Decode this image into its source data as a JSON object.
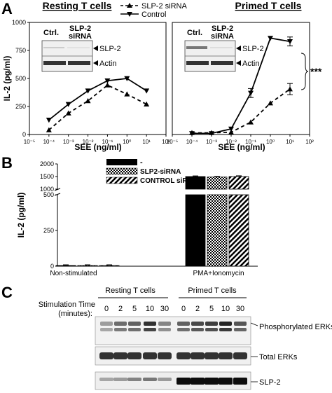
{
  "panel_letters": {
    "a": "A",
    "b": "B",
    "c": "C"
  },
  "panelA": {
    "legend": {
      "siRNA": "SLP-2 siRNA",
      "control": "Control"
    },
    "blot_labels": {
      "ctrl": "Ctrl.",
      "slp2": "SLP-2",
      "sirna": "siRNA",
      "slp2_band": "SLP-2",
      "actin_band": "Actin"
    },
    "significance": "***"
  },
  "panelB": {
    "legend": [
      "-",
      "SLP2-siRNA",
      "CONTROL siRNA"
    ]
  },
  "panelC": {
    "stim_label_1": "Stimulation Time",
    "stim_label_2": "(minutes):",
    "group_resting": "Resting T cells",
    "group_primed": "Primed T cells",
    "times": [
      "0",
      "2",
      "5",
      "10",
      "30",
      "0",
      "2",
      "5",
      "10",
      "30"
    ],
    "rows": [
      "Phosphorylated ERKs",
      "Total ERKs",
      "SLP-2"
    ]
  },
  "chart_data": [
    {
      "type": "line",
      "title": "Resting T cells",
      "xlabel": "SEE (ng/ml)",
      "ylabel": "IL-2 (pg/ml)",
      "xscale": "log",
      "x_ticks": [
        "10⁻⁵",
        "10⁻⁴",
        "10⁻³",
        "10⁻²",
        "10⁻¹",
        "10⁰",
        "10¹",
        "10²"
      ],
      "xlim_exp": [
        -5,
        2
      ],
      "y_ticks": [
        "0",
        "250",
        "500",
        "750",
        "1000"
      ],
      "ylim": [
        0,
        1000
      ],
      "x_exp": [
        -4,
        -3,
        -2,
        -1,
        0,
        1
      ],
      "series": [
        {
          "name": "SLP-2 siRNA",
          "style": "dashed",
          "marker": "triangle-up",
          "values": [
            40,
            190,
            300,
            440,
            360,
            270
          ]
        },
        {
          "name": "Control",
          "style": "solid",
          "marker": "triangle-down",
          "values": [
            130,
            270,
            390,
            480,
            500,
            390
          ]
        }
      ]
    },
    {
      "type": "line",
      "title": "Primed T cells",
      "xlabel": "SEE (ng/ml)",
      "ylabel": "",
      "xscale": "log",
      "x_ticks": [
        "10⁻⁵",
        "10⁻⁴",
        "10⁻³",
        "10⁻²",
        "10⁻¹",
        "10⁰",
        "10¹",
        "10²"
      ],
      "xlim_exp": [
        -5,
        2
      ],
      "y_ticks": [],
      "ylim": [
        0,
        1000
      ],
      "x_exp": [
        -4,
        -3,
        -2,
        -1,
        0,
        1
      ],
      "series": [
        {
          "name": "SLP-2 siRNA",
          "style": "dashed",
          "marker": "triangle-up",
          "values": [
            15,
            15,
            20,
            110,
            280,
            405
          ],
          "errors": [
            0,
            0,
            0,
            0,
            0,
            50
          ]
        },
        {
          "name": "Control",
          "style": "solid",
          "marker": "triangle-down",
          "values": [
            10,
            10,
            50,
            370,
            860,
            830
          ],
          "errors": [
            0,
            0,
            0,
            40,
            0,
            40
          ]
        }
      ]
    },
    {
      "type": "bar",
      "xlabel": "",
      "ylabel": "IL-2 (pg/ml)",
      "categories": [
        "Non-stimulated",
        "PMA+Ionomycin"
      ],
      "y_ticks_upper": [
        "1000",
        "1500",
        "2000"
      ],
      "y_ticks_lower": [
        "0",
        "250",
        "500"
      ],
      "axis_break": [
        500,
        1000
      ],
      "series": [
        {
          "name": "-",
          "values": [
            5,
            1500
          ],
          "errors": [
            0,
            25
          ]
        },
        {
          "name": "SLP2-siRNA",
          "values": [
            5,
            1480
          ],
          "errors": [
            0,
            25
          ]
        },
        {
          "name": "CONTROL siRNA",
          "values": [
            5,
            1500
          ],
          "errors": [
            0,
            30
          ]
        }
      ]
    }
  ]
}
